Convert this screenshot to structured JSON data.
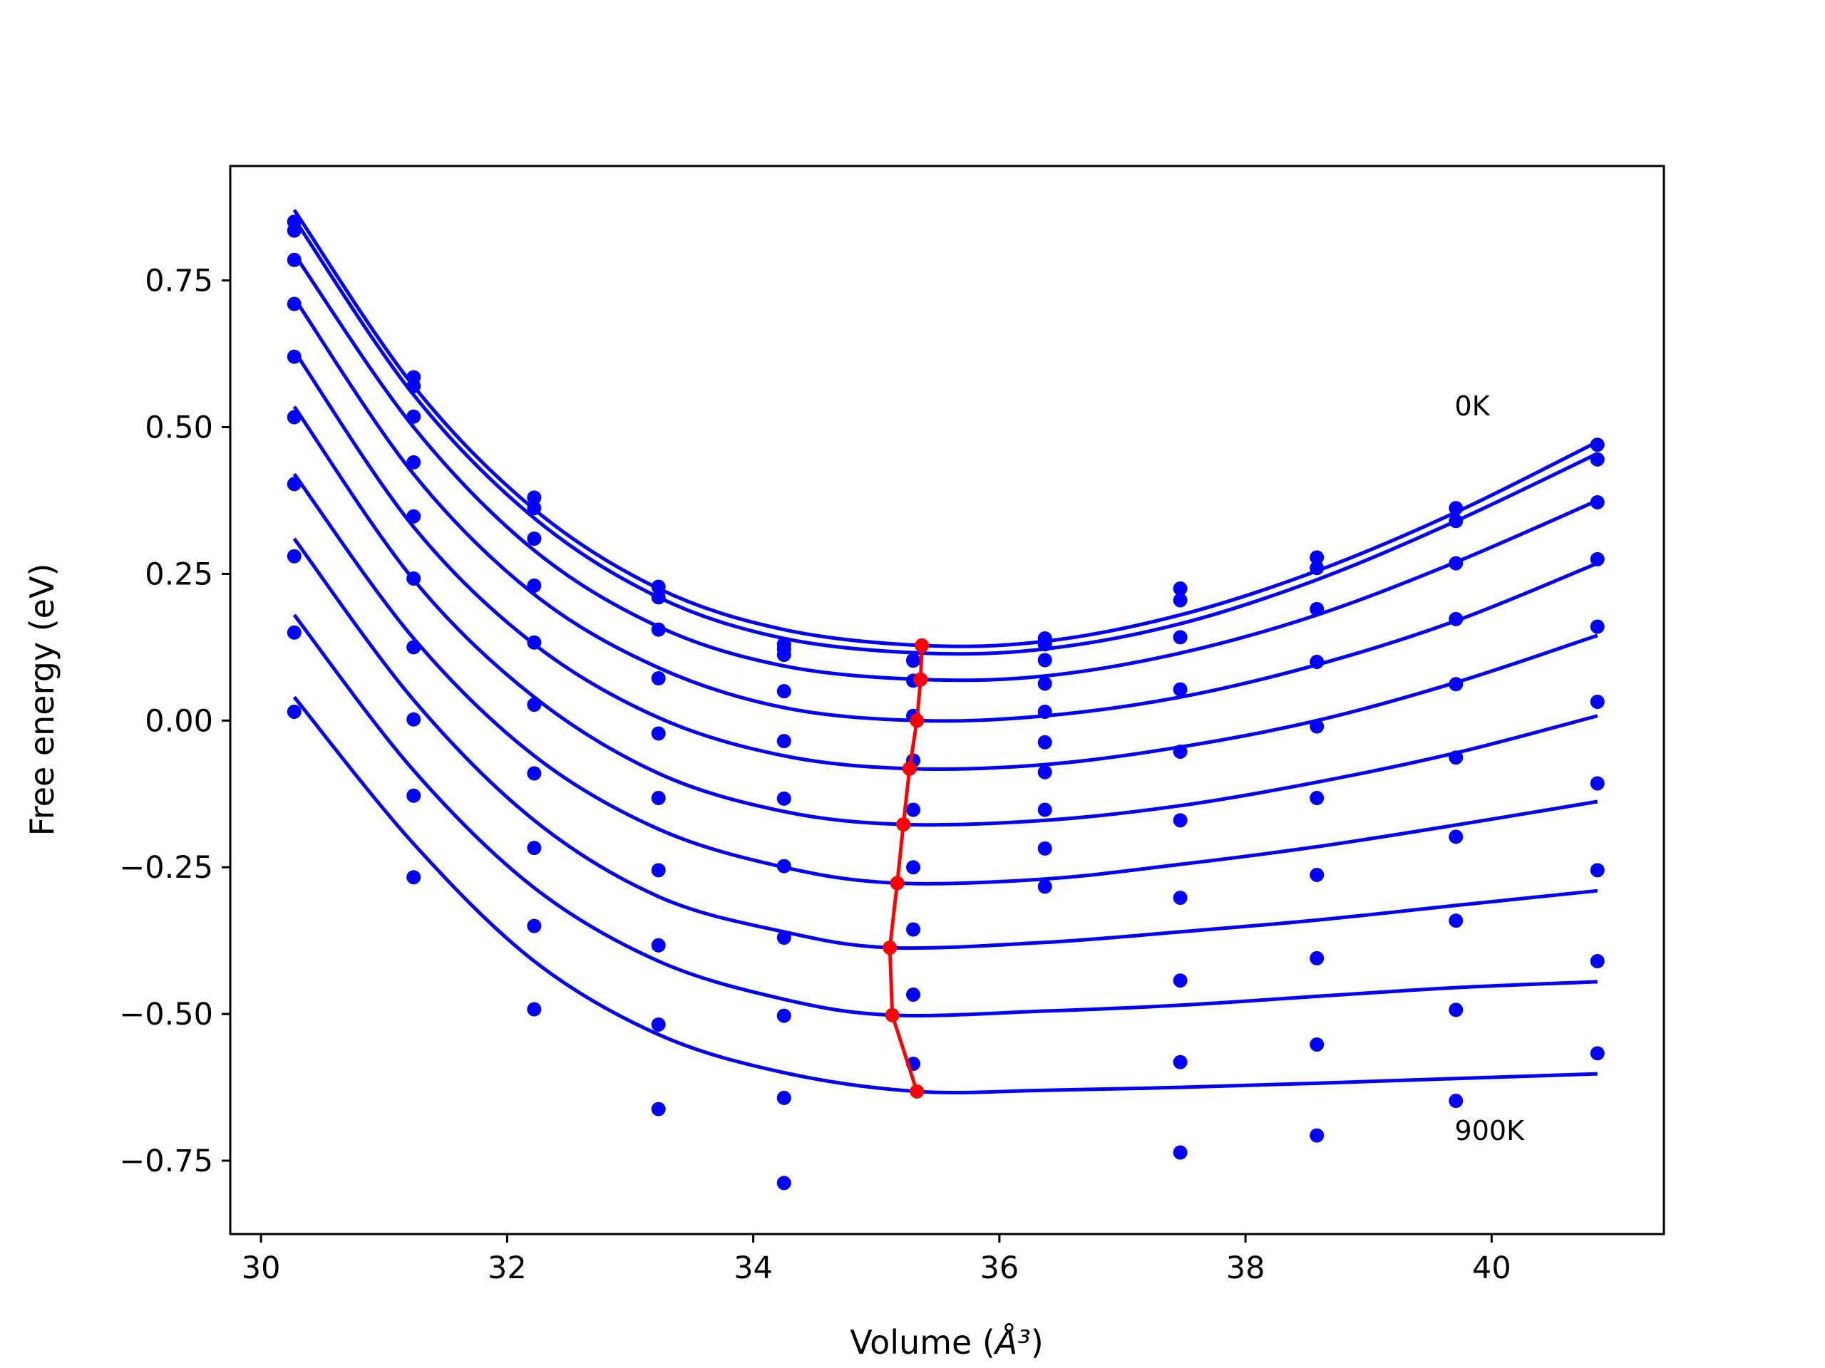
{
  "chart_data": {
    "type": "scatter",
    "xlabel": "Volume",
    "xlabel_unit": "Å³",
    "ylabel": "Free energy (eV)",
    "xlim": [
      29.75,
      41.4
    ],
    "ylim": [
      -0.875,
      0.945
    ],
    "x_ticks": [
      {
        "value": 30,
        "label": "30"
      },
      {
        "value": 32,
        "label": "32"
      },
      {
        "value": 34,
        "label": "34"
      },
      {
        "value": 36,
        "label": "36"
      },
      {
        "value": 38,
        "label": "38"
      },
      {
        "value": 40,
        "label": "40"
      }
    ],
    "y_ticks": [
      {
        "value": 0.75,
        "label": "0.75"
      },
      {
        "value": 0.5,
        "label": "0.50"
      },
      {
        "value": 0.25,
        "label": "0.25"
      },
      {
        "value": 0.0,
        "label": "0.00"
      },
      {
        "value": -0.25,
        "label": "−0.25"
      },
      {
        "value": -0.5,
        "label": "−0.50"
      },
      {
        "value": -0.75,
        "label": "−0.75"
      }
    ],
    "grid": false,
    "colors": {
      "points": "#0000ff",
      "fits": "#0000ff",
      "minimum": "#ff0000"
    },
    "annotations": [
      {
        "text": "0K",
        "x": 39.7,
        "y": 0.52
      },
      {
        "text": "900K",
        "x": 39.7,
        "y": -0.715
      }
    ],
    "volumes": [
      30.27,
      31.24,
      32.22,
      33.23,
      34.25,
      35.3,
      36.37,
      37.47,
      38.58,
      39.71,
      40.86
    ],
    "series": [
      {
        "fit_x": [
          30.27,
          31.24,
          32.22,
          33.23,
          34.25,
          35.37,
          36.37,
          37.47,
          38.58,
          39.71,
          40.86
        ],
        "fit_y": [
          0.87,
          0.57,
          0.36,
          0.225,
          0.155,
          0.128,
          0.135,
          0.18,
          0.255,
          0.355,
          0.475
        ],
        "points": [
          0.85,
          0.585,
          0.38,
          0.228,
          0.13,
          0.102,
          0.14,
          0.225,
          0.278,
          0.362,
          0.47
        ]
      },
      {
        "fit_x": [
          30.27,
          31.24,
          32.22,
          33.23,
          34.25,
          35.37,
          36.37,
          37.47,
          38.58,
          39.71,
          40.86
        ],
        "fit_y": [
          0.855,
          0.555,
          0.345,
          0.21,
          0.14,
          0.115,
          0.122,
          0.165,
          0.24,
          0.34,
          0.455
        ],
        "points": [
          0.835,
          0.57,
          0.362,
          0.21,
          0.112,
          0.103,
          0.13,
          0.205,
          0.26,
          0.34,
          0.445
        ]
      },
      {
        "fit_x": [
          30.27,
          31.24,
          32.22,
          33.23,
          34.25,
          35.37,
          36.37,
          37.47,
          38.58,
          39.71,
          40.86
        ],
        "fit_y": [
          0.795,
          0.5,
          0.29,
          0.16,
          0.093,
          0.07,
          0.076,
          0.115,
          0.18,
          0.27,
          0.375
        ],
        "points": [
          0.785,
          0.518,
          0.31,
          0.155,
          0.122,
          0.068,
          0.103,
          0.142,
          0.19,
          0.268,
          0.372
        ]
      },
      {
        "fit_x": [
          30.27,
          31.24,
          32.22,
          33.23,
          34.25,
          35.33,
          36.37,
          37.47,
          38.58,
          39.71,
          40.86
        ],
        "fit_y": [
          0.72,
          0.42,
          0.215,
          0.09,
          0.022,
          0.0,
          0.008,
          0.04,
          0.095,
          0.17,
          0.268
        ],
        "points": [
          0.71,
          0.44,
          0.23,
          0.072,
          0.05,
          0.008,
          0.063,
          0.053,
          0.1,
          0.173,
          0.275
        ]
      },
      {
        "fit_x": [
          30.27,
          31.24,
          32.22,
          33.23,
          34.25,
          35.27,
          36.37,
          37.47,
          38.58,
          39.71,
          40.86
        ],
        "fit_y": [
          0.63,
          0.33,
          0.13,
          0.005,
          -0.06,
          -0.082,
          -0.075,
          -0.045,
          0.0,
          0.065,
          0.145
        ],
        "points": [
          0.62,
          0.348,
          0.133,
          -0.022,
          -0.035,
          -0.068,
          0.015,
          -0.053,
          -0.01,
          0.062,
          0.16
        ]
      },
      {
        "fit_x": [
          30.27,
          31.24,
          32.22,
          33.23,
          34.25,
          35.22,
          36.37,
          37.47,
          38.58,
          39.71,
          40.86
        ],
        "fit_y": [
          0.535,
          0.24,
          0.04,
          -0.09,
          -0.155,
          -0.177,
          -0.17,
          -0.145,
          -0.105,
          -0.055,
          0.008
        ],
        "points": [
          0.517,
          0.242,
          0.027,
          -0.132,
          -0.133,
          -0.152,
          -0.037,
          -0.17,
          -0.132,
          -0.063,
          0.032
        ]
      },
      {
        "fit_x": [
          30.27,
          31.24,
          32.22,
          33.23,
          34.25,
          35.17,
          36.37,
          37.47,
          38.58,
          39.71,
          40.86
        ],
        "fit_y": [
          0.42,
          0.14,
          -0.06,
          -0.185,
          -0.25,
          -0.277,
          -0.27,
          -0.245,
          -0.215,
          -0.178,
          -0.138
        ],
        "points": [
          0.403,
          0.125,
          -0.09,
          -0.255,
          -0.248,
          -0.25,
          -0.088,
          -0.302,
          -0.263,
          -0.198,
          -0.107
        ]
      },
      {
        "fit_x": [
          30.27,
          31.24,
          32.22,
          33.23,
          34.25,
          35.11,
          36.37,
          37.47,
          38.58,
          39.71,
          40.86
        ],
        "fit_y": [
          0.31,
          0.035,
          -0.17,
          -0.3,
          -0.36,
          -0.387,
          -0.378,
          -0.36,
          -0.34,
          -0.315,
          -0.29
        ],
        "points": [
          0.28,
          0.002,
          -0.217,
          -0.383,
          -0.37,
          -0.356,
          -0.152,
          -0.443,
          -0.405,
          -0.341,
          -0.255
        ]
      },
      {
        "fit_x": [
          30.27,
          31.24,
          32.22,
          33.23,
          34.25,
          35.13,
          36.37,
          37.47,
          38.58,
          39.71,
          40.86
        ],
        "fit_y": [
          0.18,
          -0.085,
          -0.285,
          -0.41,
          -0.475,
          -0.502,
          -0.495,
          -0.485,
          -0.47,
          -0.455,
          -0.445
        ],
        "points": [
          0.15,
          -0.128,
          -0.35,
          -0.518,
          -0.503,
          -0.467,
          -0.218,
          -0.582,
          -0.552,
          -0.493,
          -0.41
        ]
      },
      {
        "fit_x": [
          30.27,
          31.24,
          32.22,
          33.23,
          34.25,
          35.33,
          36.37,
          37.47,
          38.58,
          39.71,
          40.86
        ],
        "fit_y": [
          0.04,
          -0.21,
          -0.41,
          -0.535,
          -0.6,
          -0.632,
          -0.63,
          -0.625,
          -0.618,
          -0.61,
          -0.602
        ],
        "points": [
          0.015,
          -0.267,
          -0.492,
          -0.662,
          -0.643,
          -0.585,
          -0.283,
          -0.736,
          -0.707,
          -0.648,
          -0.567
        ]
      }
    ],
    "extra_points": [
      {
        "x": 34.25,
        "y": -0.788
      }
    ],
    "minimum_line": {
      "x": [
        35.37,
        35.36,
        35.33,
        35.27,
        35.22,
        35.17,
        35.11,
        35.13,
        35.33
      ],
      "y": [
        0.128,
        0.07,
        0.0,
        -0.082,
        -0.177,
        -0.277,
        -0.387,
        -0.502,
        -0.632
      ]
    }
  }
}
